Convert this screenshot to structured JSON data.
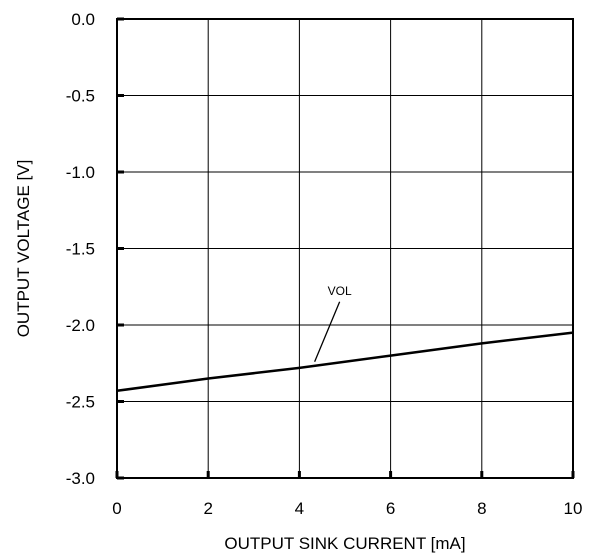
{
  "chart_data": {
    "type": "line",
    "title": "",
    "xlabel": "OUTPUT SINK CURRENT [mA]",
    "ylabel": "OUTPUT VOLTAGE [V]",
    "xlim": [
      0,
      10
    ],
    "ylim": [
      -3.0,
      0.0
    ],
    "x_ticks": [
      0,
      2,
      4,
      6,
      8,
      10
    ],
    "x_tick_labels": [
      "0",
      "2",
      "4",
      "6",
      "8",
      "10"
    ],
    "y_ticks": [
      0.0,
      -0.5,
      -1.0,
      -1.5,
      -2.0,
      -2.5,
      -3.0
    ],
    "y_tick_labels": [
      "0.0",
      "-0.5",
      "-1.0",
      "-1.5",
      "-2.0",
      "-2.5",
      "-3.0"
    ],
    "grid": true,
    "series": [
      {
        "name": "VOL",
        "x": [
          0,
          2,
          4,
          6,
          8,
          10
        ],
        "y": [
          -2.43,
          -2.35,
          -2.28,
          -2.2,
          -2.12,
          -2.05
        ]
      }
    ],
    "annotations": [
      {
        "text": "VOL",
        "x": 4.4,
        "y": -2.26
      }
    ],
    "colors": {
      "line": "#000000",
      "grid": "#000000",
      "background": "#ffffff"
    }
  }
}
